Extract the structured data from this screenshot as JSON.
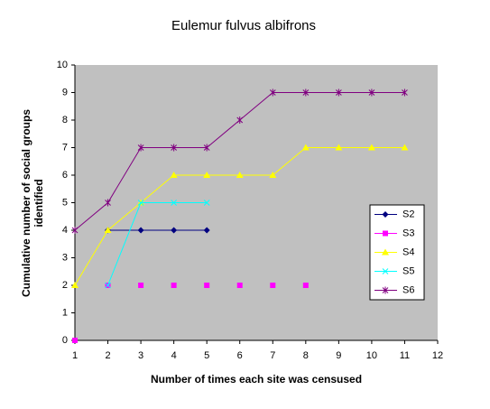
{
  "chart_data": {
    "type": "line",
    "title": "Eulemur fulvus albifrons",
    "xlabel": "Number of times each site was censused",
    "ylabel": [
      "Cumulative number of social groups",
      "identified"
    ],
    "xlim": [
      1,
      12
    ],
    "xticks": [
      1,
      2,
      3,
      4,
      5,
      6,
      7,
      8,
      9,
      10,
      11,
      12
    ],
    "ylim": [
      0,
      10
    ],
    "yticks": [
      0,
      1,
      2,
      3,
      4,
      5,
      6,
      7,
      8,
      9,
      10
    ],
    "grid": false,
    "series": [
      {
        "name": "S2",
        "color": "#000080",
        "marker": "diamond",
        "line": true,
        "x": [
          2,
          3,
          4,
          5
        ],
        "values": [
          4,
          4,
          4,
          4
        ]
      },
      {
        "name": "S3",
        "color": "#FF00FF",
        "marker": "square",
        "line": false,
        "x": [
          1,
          2,
          3,
          4,
          5,
          6,
          7,
          8
        ],
        "values": [
          0,
          2,
          2,
          2,
          2,
          2,
          2,
          2
        ]
      },
      {
        "name": "S4",
        "color": "#FFFF00",
        "marker": "triangle",
        "line": true,
        "x": [
          1,
          2,
          3,
          4,
          5,
          6,
          7,
          8,
          9,
          10,
          11
        ],
        "values": [
          2,
          4,
          5,
          6,
          6,
          6,
          6,
          7,
          7,
          7,
          7
        ]
      },
      {
        "name": "S5",
        "color": "#00FFFF",
        "marker": "x",
        "line": true,
        "x": [
          2,
          3,
          4,
          5
        ],
        "values": [
          2,
          5,
          5,
          5
        ]
      },
      {
        "name": "S6",
        "color": "#800080",
        "marker": "star",
        "line": true,
        "x": [
          1,
          2,
          3,
          4,
          5,
          6,
          7,
          8,
          9,
          10,
          11
        ],
        "values": [
          4,
          5,
          7,
          7,
          7,
          8,
          9,
          9,
          9,
          9,
          9
        ]
      }
    ]
  }
}
